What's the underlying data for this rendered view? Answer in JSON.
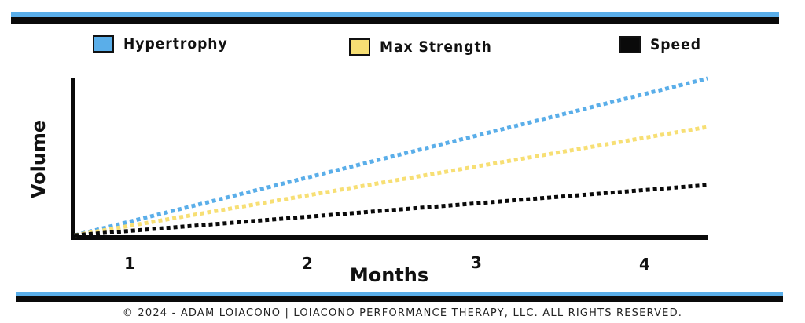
{
  "legend": [
    {
      "label": "Hypertrophy",
      "color": "#5aaee9"
    },
    {
      "label": "Max Strength",
      "color": "#f7df74"
    },
    {
      "label": "Speed",
      "color": "#0a0a0a"
    }
  ],
  "chart_data": {
    "type": "line",
    "xlabel": "Months",
    "ylabel": "Volume",
    "x_ticks": [
      "1",
      "2",
      "3",
      "4"
    ],
    "series": [
      {
        "name": "Hypertrophy",
        "color": "#5aaee9",
        "x": [
          0.33,
          4.4
        ],
        "y": [
          0,
          100
        ]
      },
      {
        "name": "Max Strength",
        "color": "#f7df74",
        "x": [
          0.33,
          4.4
        ],
        "y": [
          0,
          69
        ]
      },
      {
        "name": "Speed",
        "color": "#0a0a0a",
        "x": [
          0.33,
          4.4
        ],
        "y": [
          0,
          32
        ]
      }
    ],
    "ylim": [
      0,
      100
    ],
    "grid": false,
    "legend_position": "top"
  },
  "footer": "© 2024 - ADAM LOIACONO  |  LOIACONO PERFORMANCE THERAPY, LLC. ALL RIGHTS RESERVED."
}
